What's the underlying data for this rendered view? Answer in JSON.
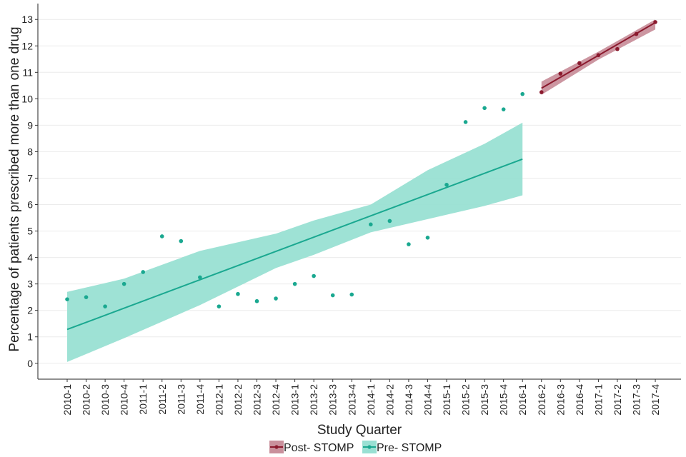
{
  "chart_data": {
    "type": "scatter",
    "title": "",
    "xlabel": "Study Quarter",
    "ylabel": "Percentage of patients prescribed more than one drug",
    "ylim": [
      -0.6,
      13.6
    ],
    "yticks": [
      0,
      1,
      2,
      3,
      4,
      5,
      6,
      7,
      8,
      9,
      10,
      11,
      12,
      13
    ],
    "grid": "horizontal",
    "legend_position": "bottom",
    "categories": [
      "2010-1",
      "2010-2",
      "2010-3",
      "2010-4",
      "2011-1",
      "2011-2",
      "2011-3",
      "2011-4",
      "2012-1",
      "2012-2",
      "2012-3",
      "2012-4",
      "2013-1",
      "2013-2",
      "2013-3",
      "2013-4",
      "2014-1",
      "2014-2",
      "2014-3",
      "2014-4",
      "2015-1",
      "2015-2",
      "2015-3",
      "2015-4",
      "2016-1",
      "2016-2",
      "2016-3",
      "2016-4",
      "2017-1",
      "2017-2",
      "2017-3",
      "2017-4"
    ],
    "series": [
      {
        "name": "Post- STOMP",
        "color": "#8b1a2e",
        "band_color": "#c9909c",
        "points": [
          {
            "x": "2016-2",
            "y": 10.25
          },
          {
            "x": "2016-3",
            "y": 10.95
          },
          {
            "x": "2016-4",
            "y": 11.35
          },
          {
            "x": "2017-1",
            "y": 11.65
          },
          {
            "x": "2017-2",
            "y": 11.88
          },
          {
            "x": "2017-3",
            "y": 12.45
          },
          {
            "x": "2017-4",
            "y": 12.9
          }
        ],
        "fit": {
          "start": "2016-2",
          "end": "2017-4",
          "y_start": 10.4,
          "y_end": 12.88
        },
        "ci_band": [
          {
            "x": "2016-2",
            "lo": 10.15,
            "hi": 10.65
          },
          {
            "x": "2017-1",
            "lo": 11.48,
            "hi": 11.78
          },
          {
            "x": "2017-4",
            "lo": 12.62,
            "hi": 13.0
          }
        ]
      },
      {
        "name": "Pre- STOMP",
        "color": "#1aa890",
        "band_color": "#99e0d3",
        "points": [
          {
            "x": "2010-1",
            "y": 2.42
          },
          {
            "x": "2010-2",
            "y": 2.5
          },
          {
            "x": "2010-3",
            "y": 2.15
          },
          {
            "x": "2010-4",
            "y": 3.0
          },
          {
            "x": "2011-1",
            "y": 3.45
          },
          {
            "x": "2011-2",
            "y": 4.8
          },
          {
            "x": "2011-3",
            "y": 4.62
          },
          {
            "x": "2011-4",
            "y": 3.25
          },
          {
            "x": "2012-1",
            "y": 2.15
          },
          {
            "x": "2012-2",
            "y": 2.62
          },
          {
            "x": "2012-3",
            "y": 2.35
          },
          {
            "x": "2012-4",
            "y": 2.45
          },
          {
            "x": "2013-1",
            "y": 3.0
          },
          {
            "x": "2013-2",
            "y": 3.3
          },
          {
            "x": "2013-3",
            "y": 2.57
          },
          {
            "x": "2013-4",
            "y": 2.6
          },
          {
            "x": "2014-1",
            "y": 5.25
          },
          {
            "x": "2014-2",
            "y": 5.38
          },
          {
            "x": "2014-3",
            "y": 4.5
          },
          {
            "x": "2014-4",
            "y": 4.75
          },
          {
            "x": "2015-1",
            "y": 6.75
          },
          {
            "x": "2015-2",
            "y": 9.12
          },
          {
            "x": "2015-3",
            "y": 9.65
          },
          {
            "x": "2015-4",
            "y": 9.6
          },
          {
            "x": "2016-1",
            "y": 10.18
          }
        ],
        "fit": {
          "start": "2010-1",
          "end": "2016-1",
          "y_start": 1.28,
          "y_end": 7.72
        },
        "ci_band": [
          {
            "x": "2010-1",
            "lo": 0.05,
            "hi": 2.7
          },
          {
            "x": "2010-4",
            "lo": 0.95,
            "hi": 3.2
          },
          {
            "x": "2011-4",
            "lo": 2.2,
            "hi": 4.25
          },
          {
            "x": "2012-4",
            "lo": 3.6,
            "hi": 4.9
          },
          {
            "x": "2013-2",
            "lo": 4.1,
            "hi": 5.4
          },
          {
            "x": "2014-1",
            "lo": 4.95,
            "hi": 6.0
          },
          {
            "x": "2014-4",
            "lo": 5.45,
            "hi": 7.3
          },
          {
            "x": "2015-3",
            "lo": 5.95,
            "hi": 8.3
          },
          {
            "x": "2016-1",
            "lo": 6.35,
            "hi": 9.1
          }
        ]
      }
    ]
  }
}
